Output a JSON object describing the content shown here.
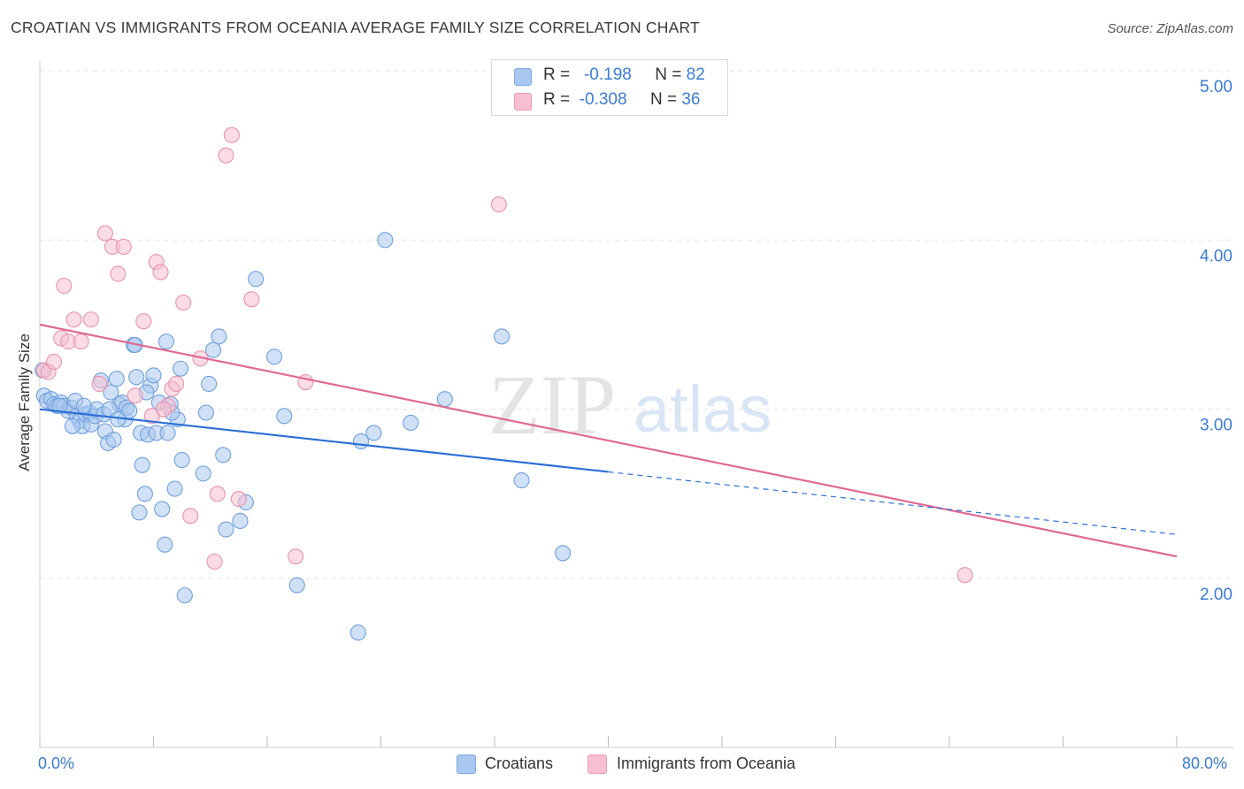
{
  "title": "CROATIAN VS IMMIGRANTS FROM OCEANIA AVERAGE FAMILY SIZE CORRELATION CHART",
  "source": "Source: ZipAtlas.com",
  "watermark": {
    "zip": "ZIP",
    "atlas": "atlas"
  },
  "stats": {
    "series1": {
      "r_label": "R =",
      "r_value": "-0.198",
      "n_label": "N =",
      "n_value": "82",
      "color": "#a9c8f0"
    },
    "series2": {
      "r_label": "R =",
      "r_value": "-0.308",
      "n_label": "N =",
      "n_value": "36",
      "color": "#f5b8cb"
    }
  },
  "legend": {
    "s1": "Croatians",
    "s2": "Immigrants from Oceania"
  },
  "x_axis": {
    "min_label": "0.0%",
    "max_label": "80.0%"
  },
  "colors": {
    "blue_line": "#2a6fd6",
    "pink_line": "#e06a94",
    "blue_fill": "#a9c8f0",
    "pink_fill": "#f7bfd0",
    "tick_text": "#3a7bd5"
  },
  "chart_data": {
    "type": "scatter",
    "xlabel": "",
    "ylabel": "Average Family Size",
    "xlim": [
      0,
      80
    ],
    "ylim": [
      1.0,
      5.2
    ],
    "yticks": [
      2.0,
      3.0,
      4.0,
      5.0
    ],
    "ytick_labels": [
      "2.00",
      "3.00",
      "4.00",
      "5.00"
    ],
    "grid": "horizontal dashed",
    "legend_position": "bottom-center",
    "series": [
      {
        "name": "Croatians",
        "color": "#2a6fd6",
        "trend": {
          "x0": 0,
          "y0": 3.0,
          "x1": 40,
          "y1": 2.63,
          "dashed_to_x": 80,
          "dashed_to_y": 2.26
        },
        "points": [
          [
            0.2,
            3.23
          ],
          [
            0.3,
            3.08
          ],
          [
            0.5,
            3.05
          ],
          [
            0.8,
            3.06
          ],
          [
            1.0,
            3.03
          ],
          [
            1.2,
            3.02
          ],
          [
            1.5,
            3.04
          ],
          [
            1.7,
            3.02
          ],
          [
            2.0,
            2.99
          ],
          [
            2.2,
            3.01
          ],
          [
            2.5,
            3.05
          ],
          [
            2.6,
            2.96
          ],
          [
            2.8,
            2.93
          ],
          [
            3.0,
            2.9
          ],
          [
            3.2,
            2.97
          ],
          [
            3.5,
            2.98
          ],
          [
            3.6,
            2.91
          ],
          [
            3.9,
            2.96
          ],
          [
            4.0,
            3.0
          ],
          [
            4.3,
            3.17
          ],
          [
            4.5,
            2.97
          ],
          [
            4.6,
            2.87
          ],
          [
            4.8,
            2.8
          ],
          [
            5.0,
            3.1
          ],
          [
            5.2,
            2.82
          ],
          [
            5.4,
            3.18
          ],
          [
            5.6,
            3.03
          ],
          [
            5.8,
            3.04
          ],
          [
            6.0,
            2.94
          ],
          [
            6.1,
            3.01
          ],
          [
            6.3,
            2.99
          ],
          [
            6.6,
            3.38
          ],
          [
            6.8,
            3.19
          ],
          [
            7.0,
            2.39
          ],
          [
            7.1,
            2.86
          ],
          [
            7.2,
            2.67
          ],
          [
            7.4,
            2.5
          ],
          [
            7.6,
            2.85
          ],
          [
            7.8,
            3.14
          ],
          [
            8.0,
            3.2
          ],
          [
            8.2,
            2.86
          ],
          [
            8.4,
            3.04
          ],
          [
            8.6,
            2.41
          ],
          [
            8.8,
            2.2
          ],
          [
            8.9,
            3.4
          ],
          [
            9.0,
            2.86
          ],
          [
            9.2,
            3.03
          ],
          [
            9.5,
            2.53
          ],
          [
            9.7,
            2.94
          ],
          [
            9.9,
            3.24
          ],
          [
            10.0,
            2.7
          ],
          [
            10.2,
            1.9
          ],
          [
            11.5,
            2.62
          ],
          [
            11.7,
            2.98
          ],
          [
            11.9,
            3.15
          ],
          [
            12.2,
            3.35
          ],
          [
            12.6,
            3.43
          ],
          [
            12.9,
            2.73
          ],
          [
            13.1,
            2.29
          ],
          [
            14.1,
            2.34
          ],
          [
            14.5,
            2.45
          ],
          [
            15.2,
            3.77
          ],
          [
            16.5,
            3.31
          ],
          [
            17.2,
            2.96
          ],
          [
            18.1,
            1.96
          ],
          [
            22.4,
            1.68
          ],
          [
            22.6,
            2.81
          ],
          [
            23.5,
            2.86
          ],
          [
            24.3,
            4.0
          ],
          [
            26.1,
            2.92
          ],
          [
            28.5,
            3.06
          ],
          [
            32.5,
            3.43
          ],
          [
            33.9,
            2.58
          ],
          [
            36.8,
            2.15
          ],
          [
            6.7,
            3.38
          ],
          [
            2.3,
            2.9
          ],
          [
            3.1,
            3.02
          ],
          [
            1.4,
            3.02
          ],
          [
            4.9,
            3.0
          ],
          [
            5.5,
            2.94
          ],
          [
            7.5,
            3.1
          ],
          [
            9.3,
            2.98
          ]
        ]
      },
      {
        "name": "Immigrants from Oceania",
        "color": "#e06a94",
        "trend": {
          "x0": 0,
          "y0": 3.5,
          "x1": 80,
          "y1": 2.13
        },
        "points": [
          [
            0.3,
            3.23
          ],
          [
            0.6,
            3.22
          ],
          [
            1.0,
            3.28
          ],
          [
            1.5,
            3.42
          ],
          [
            1.7,
            3.73
          ],
          [
            2.0,
            3.4
          ],
          [
            2.4,
            3.53
          ],
          [
            2.9,
            3.4
          ],
          [
            3.6,
            3.53
          ],
          [
            4.2,
            3.15
          ],
          [
            4.6,
            4.04
          ],
          [
            5.1,
            3.96
          ],
          [
            5.5,
            3.8
          ],
          [
            5.9,
            3.96
          ],
          [
            6.7,
            3.08
          ],
          [
            7.3,
            3.52
          ],
          [
            7.9,
            2.96
          ],
          [
            8.2,
            3.87
          ],
          [
            8.5,
            3.81
          ],
          [
            9.0,
            3.02
          ],
          [
            9.3,
            3.12
          ],
          [
            9.6,
            3.15
          ],
          [
            10.1,
            3.63
          ],
          [
            10.6,
            2.37
          ],
          [
            11.3,
            3.3
          ],
          [
            12.3,
            2.1
          ],
          [
            12.5,
            2.5
          ],
          [
            13.1,
            4.5
          ],
          [
            13.5,
            4.62
          ],
          [
            14.0,
            2.47
          ],
          [
            14.9,
            3.65
          ],
          [
            18.0,
            2.13
          ],
          [
            18.7,
            3.16
          ],
          [
            32.3,
            4.21
          ],
          [
            65.1,
            2.02
          ],
          [
            8.7,
            3.0
          ]
        ]
      }
    ]
  }
}
